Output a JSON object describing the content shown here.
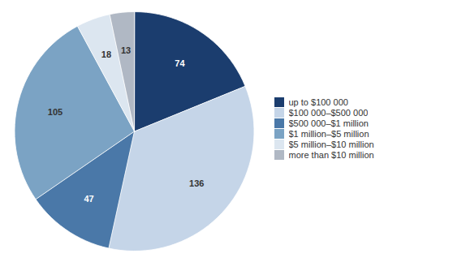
{
  "chart_data": {
    "type": "pie",
    "labels": [
      "up to $100 000",
      "$100 000–$500 000",
      "$500 000–$1 million",
      "$1 million–$5 million",
      "$5 million–$10 million",
      "more than $10 million"
    ],
    "values": [
      74,
      136,
      47,
      105,
      18,
      13
    ],
    "colors": [
      "#1b3d6e",
      "#c5d5e8",
      "#4a78a8",
      "#7ba3c4",
      "#dce6f0",
      "#b0b8c4"
    ],
    "data_labels": true,
    "legend": "right"
  }
}
